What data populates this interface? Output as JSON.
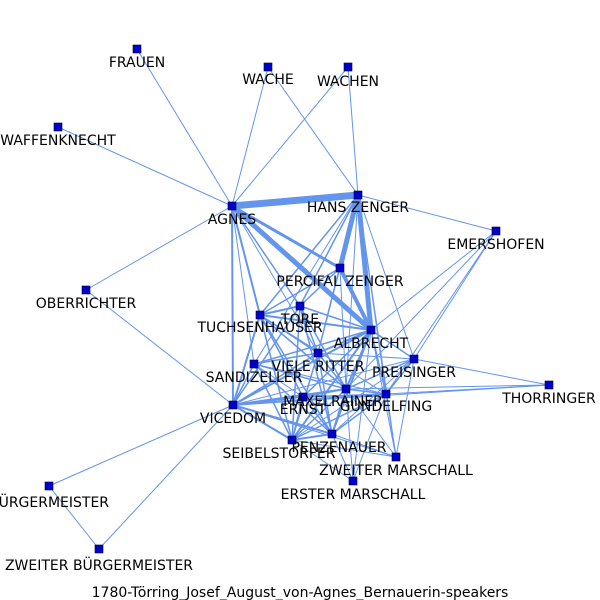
{
  "caption": "1780-Törring_Josef_August_von-Agnes_Bernauerin-speakers",
  "colors": {
    "edge": "#6495ED",
    "node": "#0000CD",
    "text": "#000000",
    "background": "#ffffff"
  },
  "nodes": [
    {
      "id": "frauen",
      "label": "FRAUEN"
    },
    {
      "id": "wache",
      "label": "WACHE"
    },
    {
      "id": "wachen",
      "label": "WACHEN"
    },
    {
      "id": "waffenknecht",
      "label": "WAFFENKNECHT"
    },
    {
      "id": "agnes",
      "label": "AGNES"
    },
    {
      "id": "hans_zenger",
      "label": "HANS ZENGER"
    },
    {
      "id": "emershofen",
      "label": "EMERSHOFEN"
    },
    {
      "id": "percifal_zenger",
      "label": "PERCIFAL ZENGER"
    },
    {
      "id": "oberrichter",
      "label": "OBERRICHTER"
    },
    {
      "id": "tore",
      "label": "TORE"
    },
    {
      "id": "tuchsenhauser",
      "label": "TUCHSENHAUSER"
    },
    {
      "id": "albrecht",
      "label": "ALBRECHT"
    },
    {
      "id": "viele_ritter",
      "label": "VIELE RITTER"
    },
    {
      "id": "sandizeller",
      "label": "SANDIZELLER"
    },
    {
      "id": "preisinger",
      "label": "PREISINGER"
    },
    {
      "id": "thorringer",
      "label": "THORRINGER"
    },
    {
      "id": "maxelrainer",
      "label": "MAXELRAINER"
    },
    {
      "id": "ernst",
      "label": "ERNST"
    },
    {
      "id": "gundelfing",
      "label": "GUNDELFING"
    },
    {
      "id": "vicedom",
      "label": "VICEDOM"
    },
    {
      "id": "penzenauer",
      "label": "PENZENAUER"
    },
    {
      "id": "seibelstorfer",
      "label": "SEIBELSTORFER"
    },
    {
      "id": "zweiter_marschall",
      "label": "ZWEITER MARSCHALL"
    },
    {
      "id": "erster_marschall",
      "label": "ERSTER MARSCHALL"
    },
    {
      "id": "buergermeister",
      "label": "BÜRGERMEISTER"
    },
    {
      "id": "zweiter_buergermeister",
      "label": "ZWEITER BÜRGERMEISTER"
    }
  ],
  "edges": [
    [
      "agnes",
      "hans_zenger",
      7
    ],
    [
      "agnes",
      "albrecht",
      5
    ],
    [
      "hans_zenger",
      "albrecht",
      5
    ],
    [
      "hans_zenger",
      "percifal_zenger",
      5
    ],
    [
      "percifal_zenger",
      "albrecht",
      4
    ],
    [
      "agnes",
      "percifal_zenger",
      3
    ],
    [
      "agnes",
      "vicedom",
      2
    ],
    [
      "agnes",
      "tuchsenhauser",
      2
    ],
    [
      "agnes",
      "tore",
      1.5
    ],
    [
      "agnes",
      "frauen",
      1
    ],
    [
      "agnes",
      "waffenknecht",
      1
    ],
    [
      "agnes",
      "wache",
      1
    ],
    [
      "agnes",
      "wachen",
      1
    ],
    [
      "agnes",
      "oberrichter",
      1
    ],
    [
      "agnes",
      "sandizeller",
      1
    ],
    [
      "agnes",
      "viele_ritter",
      1
    ],
    [
      "hans_zenger",
      "wache",
      1
    ],
    [
      "hans_zenger",
      "wachen",
      1
    ],
    [
      "hans_zenger",
      "emershofen",
      1
    ],
    [
      "hans_zenger",
      "tuchsenhauser",
      1.5
    ],
    [
      "hans_zenger",
      "tore",
      1.5
    ],
    [
      "hans_zenger",
      "viele_ritter",
      1.5
    ],
    [
      "hans_zenger",
      "preisinger",
      1
    ],
    [
      "hans_zenger",
      "maxelrainer",
      1
    ],
    [
      "hans_zenger",
      "gundelfing",
      1
    ],
    [
      "hans_zenger",
      "zweiter_marschall",
      1
    ],
    [
      "hans_zenger",
      "sandizeller",
      1
    ],
    [
      "percifal_zenger",
      "tuchsenhauser",
      1.5
    ],
    [
      "percifal_zenger",
      "tore",
      1.5
    ],
    [
      "percifal_zenger",
      "viele_ritter",
      1
    ],
    [
      "percifal_zenger",
      "maxelrainer",
      1
    ],
    [
      "tuchsenhauser",
      "albrecht",
      2
    ],
    [
      "tuchsenhauser",
      "tore",
      2
    ],
    [
      "tuchsenhauser",
      "vicedom",
      2
    ],
    [
      "tuchsenhauser",
      "viele_ritter",
      1.5
    ],
    [
      "tuchsenhauser",
      "maxelrainer",
      1.5
    ],
    [
      "tuchsenhauser",
      "ernst",
      1.5
    ],
    [
      "tuchsenhauser",
      "penzenauer",
      1.5
    ],
    [
      "tuchsenhauser",
      "seibelstorfer",
      1.5
    ],
    [
      "tuchsenhauser",
      "gundelfing",
      1
    ],
    [
      "tore",
      "albrecht",
      1.5
    ],
    [
      "tore",
      "vicedom",
      1.5
    ],
    [
      "tore",
      "viele_ritter",
      1.5
    ],
    [
      "tore",
      "maxelrainer",
      1.5
    ],
    [
      "tore",
      "penzenauer",
      1.5
    ],
    [
      "tore",
      "seibelstorfer",
      1.5
    ],
    [
      "albrecht",
      "viele_ritter",
      2
    ],
    [
      "albrecht",
      "preisinger",
      1.5
    ],
    [
      "albrecht",
      "maxelrainer",
      2
    ],
    [
      "albrecht",
      "gundelfing",
      1.5
    ],
    [
      "albrecht",
      "penzenauer",
      2
    ],
    [
      "albrecht",
      "seibelstorfer",
      2
    ],
    [
      "albrecht",
      "vicedom",
      2
    ],
    [
      "albrecht",
      "sandizeller",
      1.5
    ],
    [
      "albrecht",
      "ernst",
      1.5
    ],
    [
      "albrecht",
      "emershofen",
      1
    ],
    [
      "albrecht",
      "zweiter_marschall",
      1
    ],
    [
      "albrecht",
      "erster_marschall",
      1
    ],
    [
      "viele_ritter",
      "maxelrainer",
      1.5
    ],
    [
      "viele_ritter",
      "vicedom",
      1.5
    ],
    [
      "viele_ritter",
      "penzenauer",
      1.5
    ],
    [
      "viele_ritter",
      "seibelstorfer",
      1.5
    ],
    [
      "viele_ritter",
      "sandizeller",
      1.5
    ],
    [
      "viele_ritter",
      "preisinger",
      1
    ],
    [
      "sandizeller",
      "vicedom",
      1.5
    ],
    [
      "sandizeller",
      "maxelrainer",
      1.5
    ],
    [
      "sandizeller",
      "seibelstorfer",
      1.5
    ],
    [
      "sandizeller",
      "penzenauer",
      1.5
    ],
    [
      "sandizeller",
      "gundelfing",
      1
    ],
    [
      "sandizeller",
      "ernst",
      1
    ],
    [
      "vicedom",
      "maxelrainer",
      2
    ],
    [
      "vicedom",
      "gundelfing",
      2
    ],
    [
      "vicedom",
      "penzenauer",
      2
    ],
    [
      "vicedom",
      "seibelstorfer",
      2
    ],
    [
      "vicedom",
      "ernst",
      1.5
    ],
    [
      "vicedom",
      "preisinger",
      1
    ],
    [
      "vicedom",
      "oberrichter",
      1
    ],
    [
      "vicedom",
      "buergermeister",
      1
    ],
    [
      "vicedom",
      "zweiter_buergermeister",
      1
    ],
    [
      "vicedom",
      "zweiter_marschall",
      1
    ],
    [
      "vicedom",
      "thorringer",
      1
    ],
    [
      "maxelrainer",
      "preisinger",
      1.5
    ],
    [
      "maxelrainer",
      "gundelfing",
      1.5
    ],
    [
      "maxelrainer",
      "penzenauer",
      1.5
    ],
    [
      "maxelrainer",
      "seibelstorfer",
      1.5
    ],
    [
      "maxelrainer",
      "ernst",
      1.5
    ],
    [
      "maxelrainer",
      "zweiter_marschall",
      1
    ],
    [
      "maxelrainer",
      "erster_marschall",
      1
    ],
    [
      "maxelrainer",
      "thorringer",
      1
    ],
    [
      "preisinger",
      "emershofen",
      1
    ],
    [
      "preisinger",
      "thorringer",
      1
    ],
    [
      "preisinger",
      "gundelfing",
      1.5
    ],
    [
      "preisinger",
      "penzenauer",
      1
    ],
    [
      "preisinger",
      "seibelstorfer",
      1
    ],
    [
      "preisinger",
      "zweiter_marschall",
      1
    ],
    [
      "gundelfing",
      "emershofen",
      1
    ],
    [
      "gundelfing",
      "thorringer",
      1
    ],
    [
      "gundelfing",
      "penzenauer",
      1.5
    ],
    [
      "gundelfing",
      "seibelstorfer",
      1.5
    ],
    [
      "gundelfing",
      "ernst",
      1.5
    ],
    [
      "gundelfing",
      "zweiter_marschall",
      1
    ],
    [
      "gundelfing",
      "erster_marschall",
      1
    ],
    [
      "ernst",
      "penzenauer",
      1.5
    ],
    [
      "ernst",
      "seibelstorfer",
      1.5
    ],
    [
      "penzenauer",
      "seibelstorfer",
      2
    ],
    [
      "penzenauer",
      "zweiter_marschall",
      1
    ],
    [
      "penzenauer",
      "erster_marschall",
      1
    ],
    [
      "seibelstorfer",
      "zweiter_marschall",
      1
    ],
    [
      "seibelstorfer",
      "erster_marschall",
      1
    ],
    [
      "buergermeister",
      "zweiter_buergermeister",
      1
    ],
    [
      "emershofen",
      "maxelrainer",
      1
    ]
  ]
}
